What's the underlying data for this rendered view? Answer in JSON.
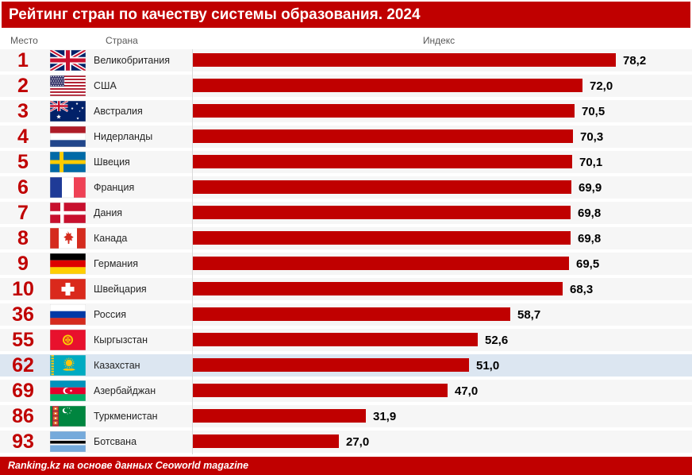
{
  "title": "Рейтинг стран по качеству системы образования. 2024",
  "columns": {
    "rank": "Место",
    "country": "Страна",
    "index": "Индекс"
  },
  "footer": "Ranking.kz на основе данных Ceoworld magazine",
  "colors": {
    "accent_red": "#C00000",
    "bar_red": "#C00000",
    "row_bg": "#F6F6F6",
    "highlight_row_bg": "#DCE6F1",
    "baseline_gray": "#D9D9D9"
  },
  "chart_data": {
    "type": "bar",
    "orientation": "horizontal",
    "title": "Рейтинг стран по качеству системы образования. 2024",
    "xlabel": "Индекс",
    "ylabel": "Страна",
    "xlim": [
      0,
      92
    ],
    "grid": false,
    "legend": null,
    "categories": [
      "Великобритания",
      "США",
      "Австралия",
      "Нидерланды",
      "Швеция",
      "Франция",
      "Дания",
      "Канада",
      "Германия",
      "Швейцария",
      "Россия",
      "Кыргызстан",
      "Казахстан",
      "Азербайджан",
      "Туркменистан",
      "Ботсвана"
    ],
    "values": [
      78.2,
      72.0,
      70.5,
      70.3,
      70.1,
      69.9,
      69.8,
      69.8,
      69.5,
      68.3,
      58.7,
      52.6,
      51.0,
      47.0,
      31.9,
      27.0
    ],
    "rows": [
      {
        "rank": "1",
        "country": "Великобритания",
        "flag": "gb",
        "value": 78.2,
        "label": "78,2",
        "highlight": false
      },
      {
        "rank": "2",
        "country": "США",
        "flag": "us",
        "value": 72.0,
        "label": "72,0",
        "highlight": false
      },
      {
        "rank": "3",
        "country": "Австралия",
        "flag": "au",
        "value": 70.5,
        "label": "70,5",
        "highlight": false
      },
      {
        "rank": "4",
        "country": "Нидерланды",
        "flag": "nl",
        "value": 70.3,
        "label": "70,3",
        "highlight": false
      },
      {
        "rank": "5",
        "country": "Швеция",
        "flag": "se",
        "value": 70.1,
        "label": "70,1",
        "highlight": false
      },
      {
        "rank": "6",
        "country": "Франция",
        "flag": "fr",
        "value": 69.9,
        "label": "69,9",
        "highlight": false
      },
      {
        "rank": "7",
        "country": "Дания",
        "flag": "dk",
        "value": 69.8,
        "label": "69,8",
        "highlight": false
      },
      {
        "rank": "8",
        "country": "Канада",
        "flag": "ca",
        "value": 69.8,
        "label": "69,8",
        "highlight": false
      },
      {
        "rank": "9",
        "country": "Германия",
        "flag": "de",
        "value": 69.5,
        "label": "69,5",
        "highlight": false
      },
      {
        "rank": "10",
        "country": "Швейцария",
        "flag": "ch",
        "value": 68.3,
        "label": "68,3",
        "highlight": false
      },
      {
        "rank": "36",
        "country": "Россия",
        "flag": "ru",
        "value": 58.7,
        "label": "58,7",
        "highlight": false
      },
      {
        "rank": "55",
        "country": "Кыргызстан",
        "flag": "kg",
        "value": 52.6,
        "label": "52,6",
        "highlight": false
      },
      {
        "rank": "62",
        "country": "Казахстан",
        "flag": "kz",
        "value": 51.0,
        "label": "51,0",
        "highlight": true
      },
      {
        "rank": "69",
        "country": "Азербайджан",
        "flag": "az",
        "value": 47.0,
        "label": "47,0",
        "highlight": false
      },
      {
        "rank": "86",
        "country": "Туркменистан",
        "flag": "tm",
        "value": 31.9,
        "label": "31,9",
        "highlight": false
      },
      {
        "rank": "93",
        "country": "Ботсвана",
        "flag": "bw",
        "value": 27.0,
        "label": "27,0",
        "highlight": false
      }
    ]
  }
}
